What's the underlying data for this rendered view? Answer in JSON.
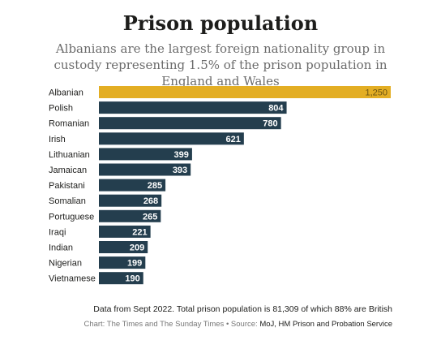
{
  "chart_data": {
    "type": "bar",
    "orientation": "horizontal",
    "title": "Prison population",
    "subtitle": "Albanians are the largest foreign nationality group in custody representing 1.5% of the prison population in England and Wales",
    "categories": [
      "Albanian",
      "Polish",
      "Romanian",
      "Irish",
      "Lithuanian",
      "Jamaican",
      "Pakistani",
      "Somalian",
      "Portuguese",
      "Iraqi",
      "Indian",
      "Nigerian",
      "Vietnamese"
    ],
    "value_labels": [
      "1,250",
      "804",
      "780",
      "621",
      "399",
      "393",
      "285",
      "268",
      "265",
      "221",
      "209",
      "199",
      "190"
    ],
    "values": [
      1250,
      804,
      780,
      621,
      399,
      393,
      285,
      268,
      265,
      221,
      209,
      199,
      190
    ],
    "xlim": [
      0,
      1250
    ],
    "grid": false,
    "highlight_category": "Albanian",
    "colors": {
      "highlight": "#E3AE24",
      "default": "#243E4E",
      "highlight_label": "#6b5310",
      "default_label": "#ffffff"
    }
  },
  "footnote": "Data from Sept 2022. Total prison population is 81,309 of which 88% are British",
  "credit": "Chart: The Times and The Sunday Times",
  "credit_separator": " • ",
  "source_label": "Source: ",
  "source_text": "MoJ, HM Prison and Probation Service"
}
